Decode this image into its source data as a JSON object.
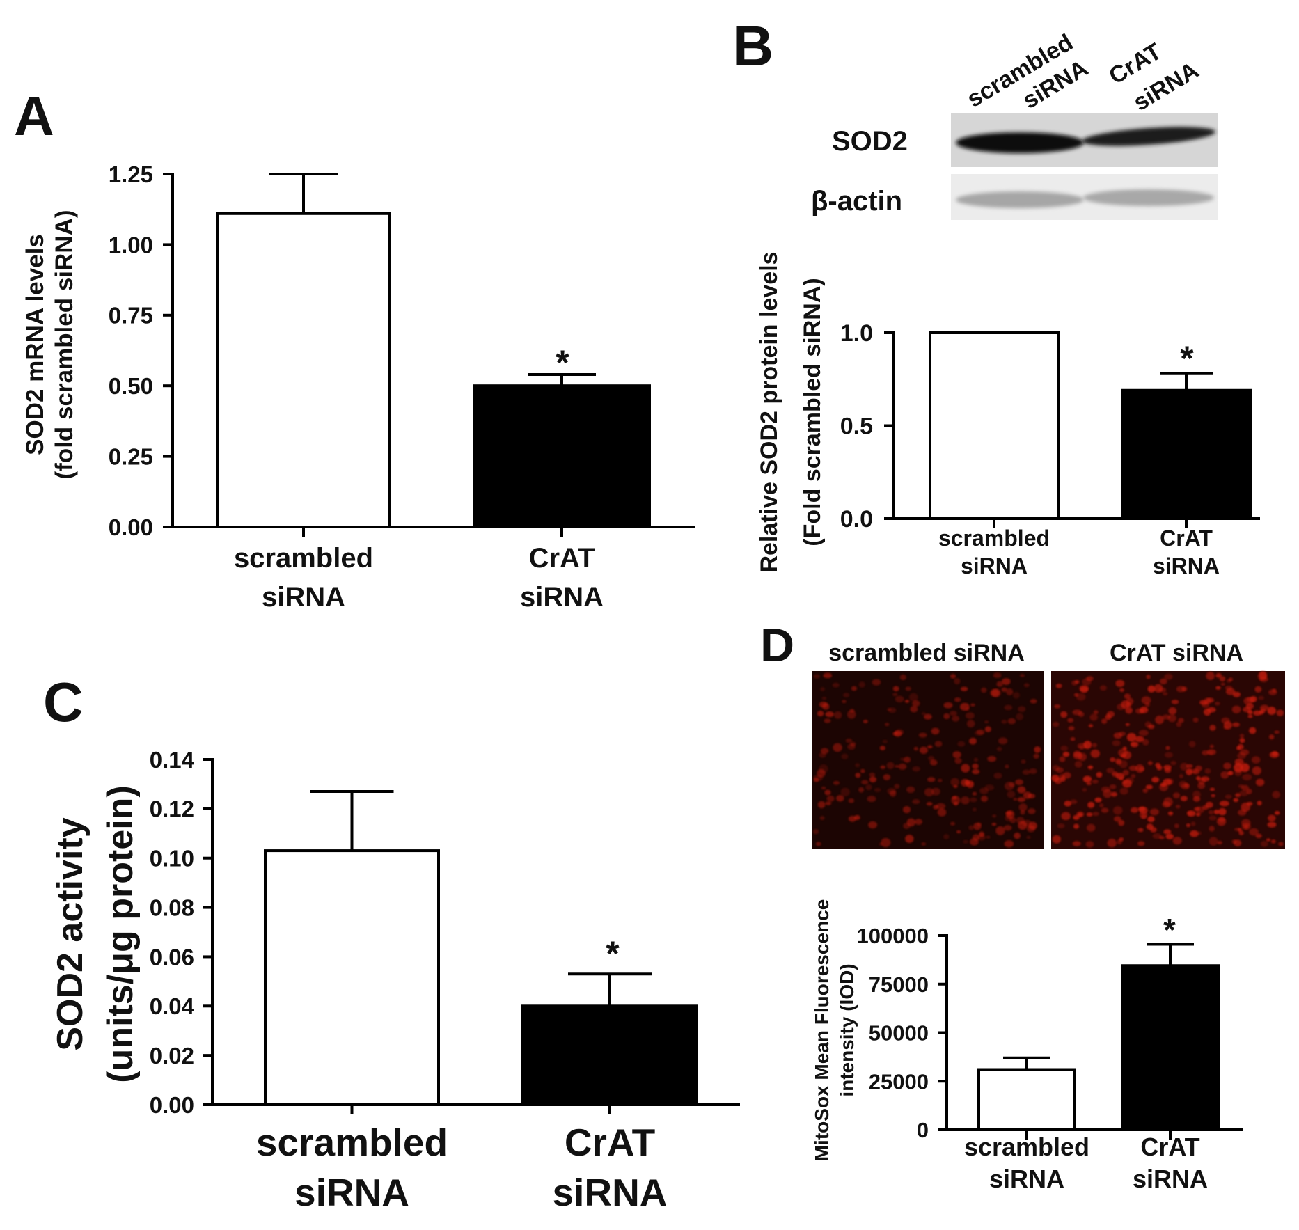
{
  "panels": {
    "A": {
      "label": "A",
      "ylabel_lines": [
        "SOD2 mRNA levels",
        "(fold scrambled siRNA)"
      ],
      "categories": [
        [
          "scrambled",
          "siRNA"
        ],
        [
          "CrAT",
          "siRNA"
        ]
      ],
      "ticks": [
        "0.00",
        "0.25",
        "0.50",
        "0.75",
        "1.00",
        "1.25"
      ],
      "significance": "*"
    },
    "B": {
      "label": "B",
      "blot_lane_labels": [
        [
          "scrambled",
          "siRNA"
        ],
        [
          "CrAT",
          "siRNA"
        ]
      ],
      "blot_rows": [
        "SOD2",
        "β-actin"
      ],
      "ylabel_lines": [
        "Relative SOD2 protein levels",
        "(Fold scrambled siRNA)"
      ],
      "categories": [
        [
          "scrambled",
          "siRNA"
        ],
        [
          "CrAT",
          "siRNA"
        ]
      ],
      "ticks": [
        "0.0",
        "0.5",
        "1.0"
      ],
      "significance": "*"
    },
    "C": {
      "label": "C",
      "ylabel_lines": [
        "SOD2 activity",
        "(units/μg protein)"
      ],
      "categories": [
        [
          "scrambled",
          "siRNA"
        ],
        [
          "CrAT",
          "siRNA"
        ]
      ],
      "ticks": [
        "0.00",
        "0.02",
        "0.04",
        "0.06",
        "0.08",
        "0.10",
        "0.12",
        "0.14"
      ],
      "significance": "*"
    },
    "D": {
      "label": "D",
      "image_labels": [
        "scrambled siRNA",
        "CrAT siRNA"
      ],
      "ylabel_lines": [
        "MitoSox Mean Fluorescence",
        "intensity (IOD)"
      ],
      "categories": [
        [
          "scrambled",
          "siRNA"
        ],
        [
          "CrAT",
          "siRNA"
        ]
      ],
      "ticks": [
        "0",
        "25000",
        "50000",
        "75000",
        "100000"
      ],
      "significance": "*"
    }
  },
  "colors": {
    "control_bar": "#ffffff",
    "treatment_bar": "#000000",
    "axis": "#000000",
    "fluorescence": "#c81e0e"
  },
  "chart_data": [
    {
      "panel": "A",
      "type": "bar",
      "categories": [
        "scrambled siRNA",
        "CrAT siRNA"
      ],
      "values": [
        1.11,
        0.5
      ],
      "errors": [
        0.14,
        0.04
      ],
      "ylabel": "SOD2 mRNA levels (fold scrambled siRNA)",
      "ylim": [
        0,
        1.25
      ],
      "yticks": [
        0,
        0.25,
        0.5,
        0.75,
        1.0,
        1.25
      ],
      "significant": [
        false,
        true
      ],
      "grid": false,
      "legend": "none"
    },
    {
      "panel": "B",
      "type": "bar",
      "categories": [
        "scrambled siRNA",
        "CrAT siRNA"
      ],
      "values": [
        1.0,
        0.69
      ],
      "errors": [
        0,
        0.09
      ],
      "ylabel": "Relative SOD2 protein levels (Fold scrambled siRNA)",
      "ylim": [
        0,
        1.0
      ],
      "yticks": [
        0,
        0.5,
        1.0
      ],
      "significant": [
        false,
        true
      ],
      "grid": false,
      "legend": "none"
    },
    {
      "panel": "C",
      "type": "bar",
      "categories": [
        "scrambled siRNA",
        "CrAT siRNA"
      ],
      "values": [
        0.103,
        0.04
      ],
      "errors": [
        0.024,
        0.013
      ],
      "ylabel": "SOD2 activity (units/μg protein)",
      "ylim": [
        0,
        0.14
      ],
      "yticks": [
        0,
        0.02,
        0.04,
        0.06,
        0.08,
        0.1,
        0.12,
        0.14
      ],
      "significant": [
        false,
        true
      ],
      "grid": false,
      "legend": "none"
    },
    {
      "panel": "D",
      "type": "bar",
      "categories": [
        "scrambled siRNA",
        "CrAT siRNA"
      ],
      "values": [
        31000,
        84500
      ],
      "errors": [
        6000,
        11000
      ],
      "ylabel": "MitoSox Mean Fluorescence intensity (IOD)",
      "ylim": [
        0,
        100000
      ],
      "yticks": [
        0,
        25000,
        50000,
        75000,
        100000
      ],
      "significant": [
        false,
        true
      ],
      "grid": false,
      "legend": "none"
    }
  ]
}
